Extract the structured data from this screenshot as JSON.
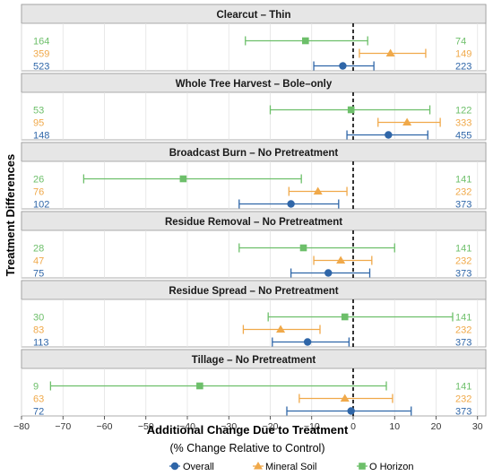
{
  "chart_data": {
    "type": "scatter",
    "subtype": "faceted-forest-plot",
    "xlabel": "Additional Change Due to Treatment",
    "xlabel_sub": "(% Change Relative to Control)",
    "ylabel": "Treatment Differences",
    "xlim": [
      -80,
      32
    ],
    "xticks": [
      -80,
      -70,
      -60,
      -50,
      -40,
      -30,
      -20,
      -10,
      0,
      10,
      20,
      30
    ],
    "reference_line": 0,
    "grid": true,
    "legend_position": "bottom",
    "series": [
      {
        "name": "Overall",
        "color": "#2f66a8",
        "marker": "circle"
      },
      {
        "name": "Mineral Soil",
        "color": "#f0a94a",
        "marker": "triangle"
      },
      {
        "name": "O Horizon",
        "color": "#6dbf6a",
        "marker": "square"
      }
    ],
    "panels": [
      {
        "title": "Clearcut – Thin",
        "rows": [
          {
            "series": "O Horizon",
            "n_left": "164",
            "n_right": "74",
            "estimate": -11.5,
            "low": -26,
            "high": 3.5
          },
          {
            "series": "Mineral Soil",
            "n_left": "359",
            "n_right": "149",
            "estimate": 9,
            "low": 1.5,
            "high": 17.5
          },
          {
            "series": "Overall",
            "n_left": "523",
            "n_right": "223",
            "estimate": -2.5,
            "low": -9.5,
            "high": 5
          }
        ]
      },
      {
        "title": "Whole Tree Harvest – Bole–only",
        "rows": [
          {
            "series": "O Horizon",
            "n_left": "53",
            "n_right": "122",
            "estimate": -0.5,
            "low": -20,
            "high": 18.5
          },
          {
            "series": "Mineral Soil",
            "n_left": "95",
            "n_right": "333",
            "estimate": 13,
            "low": 6,
            "high": 21
          },
          {
            "series": "Overall",
            "n_left": "148",
            "n_right": "455",
            "estimate": 8.5,
            "low": -1.5,
            "high": 18
          }
        ]
      },
      {
        "title": "Broadcast Burn – No Pretreatment",
        "rows": [
          {
            "series": "O Horizon",
            "n_left": "26",
            "n_right": "141",
            "estimate": -41,
            "low": -65,
            "high": -12.5
          },
          {
            "series": "Mineral Soil",
            "n_left": "76",
            "n_right": "232",
            "estimate": -8.5,
            "low": -15.5,
            "high": -1.5
          },
          {
            "series": "Overall",
            "n_left": "102",
            "n_right": "373",
            "estimate": -15,
            "low": -27.5,
            "high": -3.5
          }
        ]
      },
      {
        "title": "Residue Removal – No Pretreatment",
        "rows": [
          {
            "series": "O Horizon",
            "n_left": "28",
            "n_right": "141",
            "estimate": -12,
            "low": -27.5,
            "high": 10
          },
          {
            "series": "Mineral Soil",
            "n_left": "47",
            "n_right": "232",
            "estimate": -3,
            "low": -9.5,
            "high": 4.5
          },
          {
            "series": "Overall",
            "n_left": "75",
            "n_right": "373",
            "estimate": -6,
            "low": -15,
            "high": 4
          }
        ]
      },
      {
        "title": "Residue Spread – No Pretreatment",
        "rows": [
          {
            "series": "O Horizon",
            "n_left": "30",
            "n_right": "141",
            "estimate": -2,
            "low": -20.5,
            "high": 24
          },
          {
            "series": "Mineral Soil",
            "n_left": "83",
            "n_right": "232",
            "estimate": -17.5,
            "low": -26.5,
            "high": -8
          },
          {
            "series": "Overall",
            "n_left": "113",
            "n_right": "373",
            "estimate": -11,
            "low": -19.5,
            "high": -1
          }
        ]
      },
      {
        "title": "Tillage – No Pretreatment",
        "rows": [
          {
            "series": "O Horizon",
            "n_left": "9",
            "n_right": "141",
            "estimate": -37,
            "low": -73,
            "high": 8
          },
          {
            "series": "Mineral Soil",
            "n_left": "63",
            "n_right": "232",
            "estimate": -2,
            "low": -13,
            "high": 9.5
          },
          {
            "series": "Overall",
            "n_left": "72",
            "n_right": "373",
            "estimate": -0.5,
            "low": -16,
            "high": 14
          }
        ]
      }
    ]
  }
}
